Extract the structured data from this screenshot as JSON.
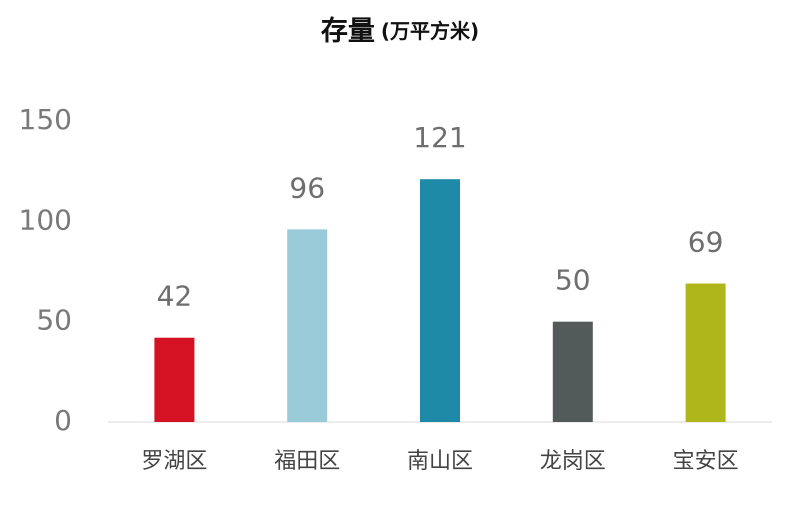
{
  "chart_data": {
    "type": "bar",
    "title": "存量",
    "subtitle": "(万平方米)",
    "categories": [
      "罗湖区",
      "福田区",
      "南山区",
      "龙岗区",
      "宝安区"
    ],
    "values": [
      42,
      96,
      121,
      50,
      69
    ],
    "colors": [
      "#d51224",
      "#9acbd8",
      "#1f8aa8",
      "#535a5a",
      "#afb619"
    ],
    "ylim": [
      0,
      150
    ],
    "yticks": [
      0,
      50,
      100,
      150
    ],
    "grid": false
  }
}
